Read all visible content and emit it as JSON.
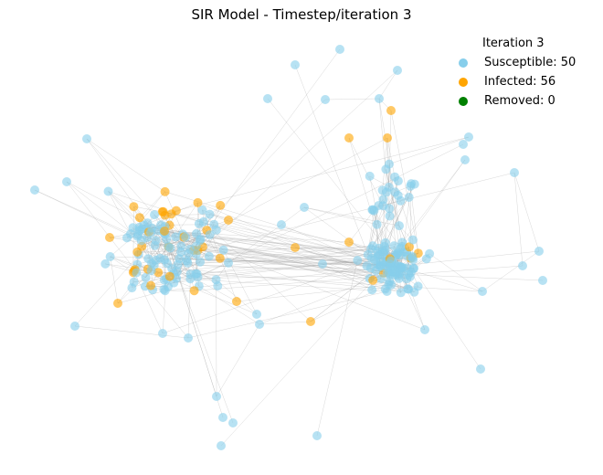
{
  "title": "SIR Model - Timestep/iteration 3",
  "legend": {
    "title": "Iteration 3",
    "items": [
      {
        "label": "Susceptible: 50",
        "color": "#87ceeb"
      },
      {
        "label": "Infected: 56",
        "color": "#ffa500"
      },
      {
        "label": "Removed: 0",
        "color": "#008000"
      }
    ]
  }
}
